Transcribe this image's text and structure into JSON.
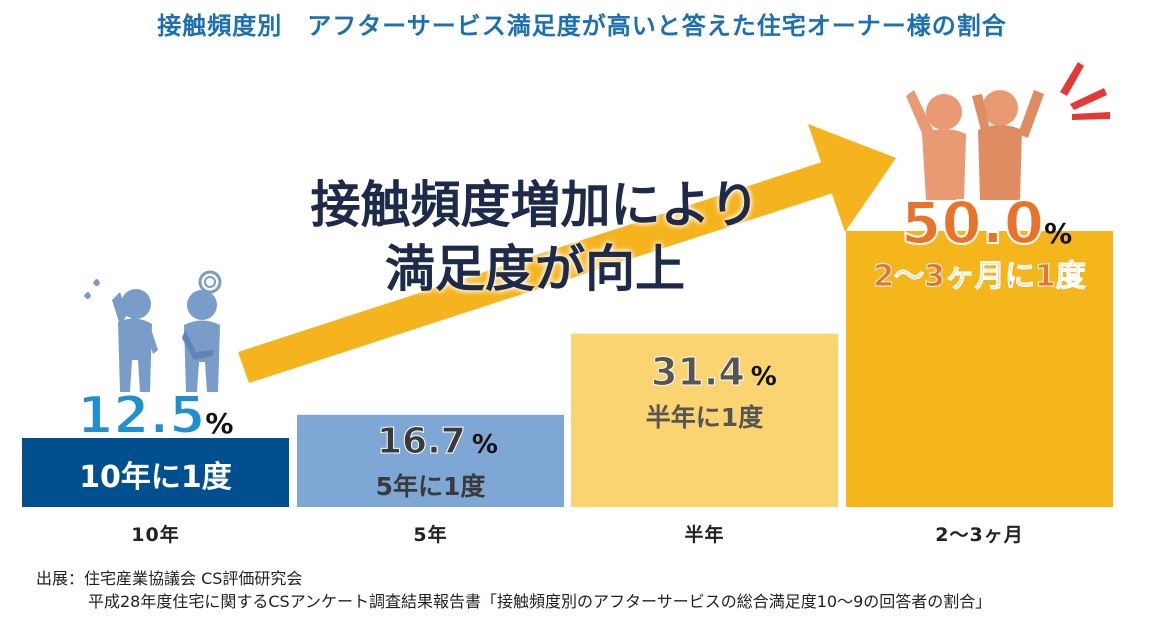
{
  "title": "接触頻度別　アフターサービス満足度が高いと答えた住宅オーナー様の割合",
  "headline": {
    "line1": "接触頻度増加により",
    "line2": "満足度が向上"
  },
  "chart_data": {
    "type": "bar",
    "title": "接触頻度別　アフターサービス満足度が高いと答えた住宅オーナー様の割合",
    "categories": [
      "10年",
      "5年",
      "半年",
      "2～3ヶ月"
    ],
    "values": [
      12.5,
      16.7,
      31.4,
      50.0
    ],
    "value_labels": [
      "12.5",
      "16.7",
      "31.4",
      "50.0"
    ],
    "unit": "%",
    "frequency_labels": [
      "10年に1度",
      "5年に1度",
      "半年に1度",
      "2～3ヶ月に1度"
    ],
    "ylim": [
      0,
      50
    ],
    "grid": false,
    "legend": "none"
  },
  "colors": {
    "title": "#1b6fb3",
    "bars": [
      "#00508f",
      "#7fa7d6",
      "#fad470",
      "#f5b61b"
    ],
    "arrow": "#f5b41e",
    "people_unhappy": "#7a9cc9",
    "people_happy": "#e99a72",
    "accent_red": "#e53935"
  },
  "icons": [
    "sad-people-icon",
    "happy-people-icon",
    "trend-arrow-icon",
    "excitement-lines-icon"
  ],
  "source": {
    "line1": "出展：住宅産業協議会 CS評価研究会",
    "line2": "平成28年度住宅に関するCSアンケート調査結果報告書「接触頻度別のアフターサービスの総合満足度10～9の回答者の割合」"
  }
}
